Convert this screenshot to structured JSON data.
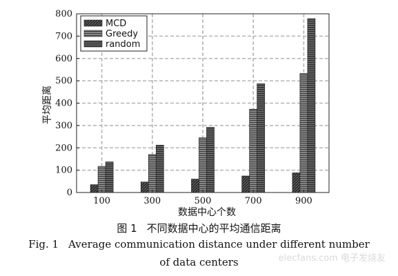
{
  "chart_data": {
    "type": "bar",
    "categories": [
      "100",
      "300",
      "500",
      "700",
      "900"
    ],
    "series": [
      {
        "name": "MCD",
        "values": [
          35,
          47,
          60,
          74,
          88
        ]
      },
      {
        "name": "Greedy",
        "values": [
          117,
          170,
          245,
          373,
          533
        ]
      },
      {
        "name": "random",
        "values": [
          137,
          212,
          292,
          487,
          778
        ]
      }
    ],
    "title": "",
    "xlabel": "数据中心个数",
    "ylabel": "平均距离",
    "ylim": [
      0,
      800
    ],
    "yticks": [
      "0",
      "100",
      "200",
      "300",
      "400",
      "500",
      "600",
      "700",
      "800"
    ],
    "grid": true,
    "legend_position": "top-left"
  },
  "caption": {
    "cn_label": "图 1",
    "cn_text": "不同数据中心的平均通信距离",
    "en_label": "Fig. 1",
    "en_line1": "Average communication distance under different number",
    "en_line2": "of data centers"
  },
  "watermark": "elecfans.com 电子发烧友",
  "colors": {
    "MCD": "#1e1e1e",
    "Greedy": "#777777",
    "random": "#575757",
    "grid": "#b4b4b4"
  }
}
